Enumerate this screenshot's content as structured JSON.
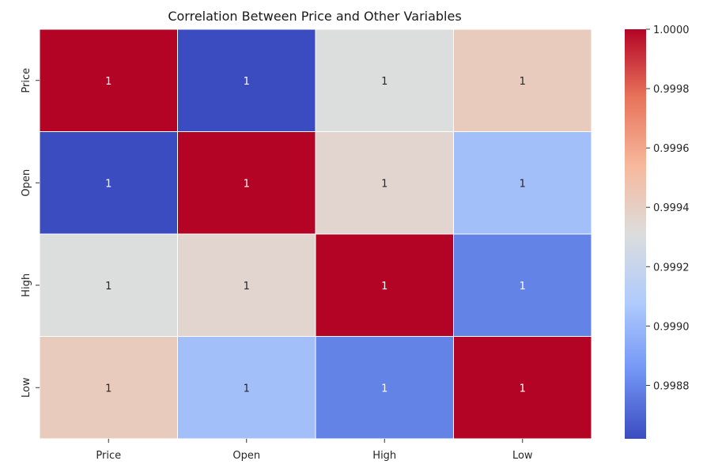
{
  "chart_data": {
    "type": "heatmap",
    "title": "Correlation Between Price and Other Variables",
    "xlabel": "",
    "ylabel": "",
    "x_categories": [
      "Price",
      "Open",
      "High",
      "Low"
    ],
    "y_categories": [
      "Price",
      "Open",
      "High",
      "Low"
    ],
    "values": [
      [
        1.0,
        0.99862,
        0.99931,
        0.99942
      ],
      [
        0.99862,
        1.0,
        0.99936,
        0.99903
      ],
      [
        0.99931,
        0.99936,
        1.0,
        0.99879
      ],
      [
        0.99942,
        0.99903,
        0.99879,
        1.0
      ]
    ],
    "annotations": [
      [
        "1",
        "1",
        "1",
        "1"
      ],
      [
        "1",
        "1",
        "1",
        "1"
      ],
      [
        "1",
        "1",
        "1",
        "1"
      ],
      [
        "1",
        "1",
        "1",
        "1"
      ]
    ],
    "colormap": "coolwarm",
    "colorbar": {
      "vmin": 0.99862,
      "vmax": 1.0,
      "ticks": [
        0.9988,
        0.999,
        0.9992,
        0.9994,
        0.9996,
        0.9998,
        1.0
      ],
      "tick_labels": [
        "0.9988",
        "0.9990",
        "0.9992",
        "0.9994",
        "0.9996",
        "0.9998",
        "1.0000"
      ]
    },
    "grid": false
  },
  "colors": {
    "cell_border": "#ffffff",
    "text_dark": "#262626",
    "text_light": "#ffffff",
    "coolwarm_stops": [
      "#3b4cc0",
      "#7396f5",
      "#b0cbfc",
      "#dcdddd",
      "#f7b89c",
      "#e7745b",
      "#b40426"
    ]
  }
}
